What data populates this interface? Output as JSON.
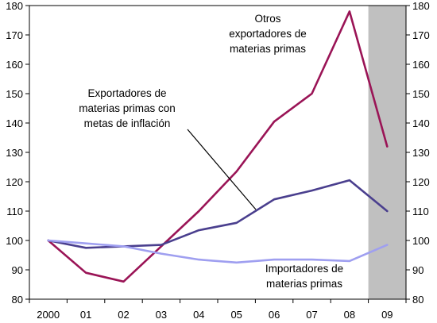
{
  "chart_data": {
    "type": "line",
    "categories": [
      "2000",
      "01",
      "02",
      "03",
      "04",
      "05",
      "06",
      "07",
      "08",
      "09"
    ],
    "series": [
      {
        "name": "Otros exportadores de materias primas",
        "color": "#9a1456",
        "values": [
          100,
          89,
          86,
          98,
          110,
          123.5,
          140.5,
          150,
          178,
          132
        ]
      },
      {
        "name": "Exportadores de materias primas con metas de inflación",
        "color": "#4a3f8e",
        "values": [
          100,
          97.5,
          98,
          98.5,
          103.5,
          106,
          114,
          117,
          120.5,
          110
        ]
      },
      {
        "name": "Importadores de materias primas",
        "color": "#9f9ff0",
        "values": [
          100,
          99,
          98,
          95.5,
          93.5,
          92.5,
          93.5,
          93.5,
          93,
          98.5
        ]
      }
    ],
    "ylim": [
      80,
      180
    ],
    "yticks": [
      "80",
      "90",
      "100",
      "110",
      "120",
      "130",
      "140",
      "150",
      "160",
      "170",
      "180"
    ],
    "secondary_yaxis": true,
    "shaded_period": "09",
    "shade_color": "#c0c0c0",
    "grid": false,
    "annotations": [
      {
        "lines": [
          "Otros",
          "exportadores de",
          "materias primas"
        ]
      },
      {
        "lines": [
          "Exportadores de",
          "materias primas con",
          "metas de inflación"
        ]
      },
      {
        "lines": [
          "Importadores de",
          "materias primas"
        ]
      }
    ]
  }
}
